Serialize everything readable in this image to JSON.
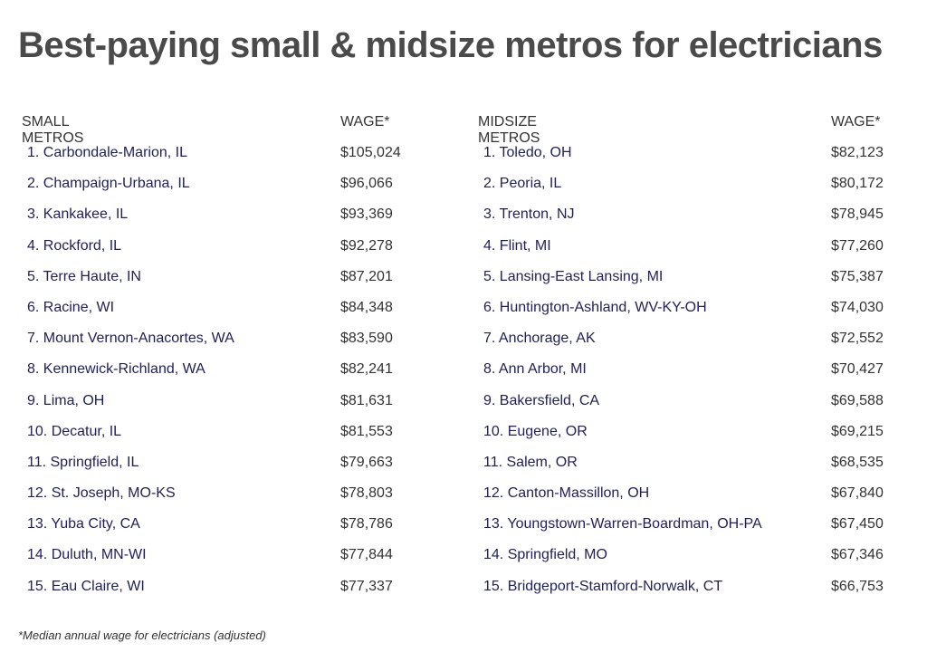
{
  "title": "Best-paying small & midsize metros for electricians",
  "small": {
    "header_name": "SMALL METROS",
    "header_wage": "WAGE*",
    "rows": [
      {
        "name": "1. Carbondale-Marion, IL",
        "wage": "$105,024"
      },
      {
        "name": "2. Champaign-Urbana, IL",
        "wage": "$96,066"
      },
      {
        "name": "3. Kankakee, IL",
        "wage": "$93,369"
      },
      {
        "name": "4. Rockford, IL",
        "wage": "$92,278"
      },
      {
        "name": "5. Terre Haute, IN",
        "wage": "$87,201"
      },
      {
        "name": "6. Racine, WI",
        "wage": "$84,348"
      },
      {
        "name": "7. Mount Vernon-Anacortes, WA",
        "wage": "$83,590"
      },
      {
        "name": "8. Kennewick-Richland, WA",
        "wage": "$82,241"
      },
      {
        "name": "9. Lima, OH",
        "wage": "$81,631"
      },
      {
        "name": "10. Decatur, IL",
        "wage": "$81,553"
      },
      {
        "name": "11. Springfield, IL",
        "wage": "$79,663"
      },
      {
        "name": "12. St. Joseph, MO-KS",
        "wage": "$78,803"
      },
      {
        "name": "13. Yuba City, CA",
        "wage": "$78,786"
      },
      {
        "name": "14. Duluth, MN-WI",
        "wage": "$77,844"
      },
      {
        "name": "15. Eau Claire, WI",
        "wage": "$77,337"
      }
    ]
  },
  "midsize": {
    "header_name": "MIDSIZE METROS",
    "header_wage": "WAGE*",
    "rows": [
      {
        "name": "1. Toledo, OH",
        "wage": "$82,123"
      },
      {
        "name": "2. Peoria, IL",
        "wage": "$80,172"
      },
      {
        "name": "3. Trenton, NJ",
        "wage": "$78,945"
      },
      {
        "name": "4. Flint, MI",
        "wage": "$77,260"
      },
      {
        "name": "5. Lansing-East Lansing, MI",
        "wage": "$75,387"
      },
      {
        "name": "6. Huntington-Ashland, WV-KY-OH",
        "wage": "$74,030"
      },
      {
        "name": "7. Anchorage, AK",
        "wage": "$72,552"
      },
      {
        "name": "8. Ann Arbor, MI",
        "wage": "$70,427"
      },
      {
        "name": "9. Bakersfield, CA",
        "wage": "$69,588"
      },
      {
        "name": "10. Eugene, OR",
        "wage": "$69,215"
      },
      {
        "name": "11. Salem, OR",
        "wage": "$68,535"
      },
      {
        "name": "12. Canton-Massillon, OH",
        "wage": "$67,840"
      },
      {
        "name": "13. Youngstown-Warren-Boardman, OH-PA",
        "wage": "$67,450"
      },
      {
        "name": "14. Springfield, MO",
        "wage": "$67,346"
      },
      {
        "name": "15. Bridgeport-Stamford-Norwalk, CT",
        "wage": "$66,753"
      }
    ]
  },
  "footnote": "*Median annual wage for electricians (adjusted)"
}
